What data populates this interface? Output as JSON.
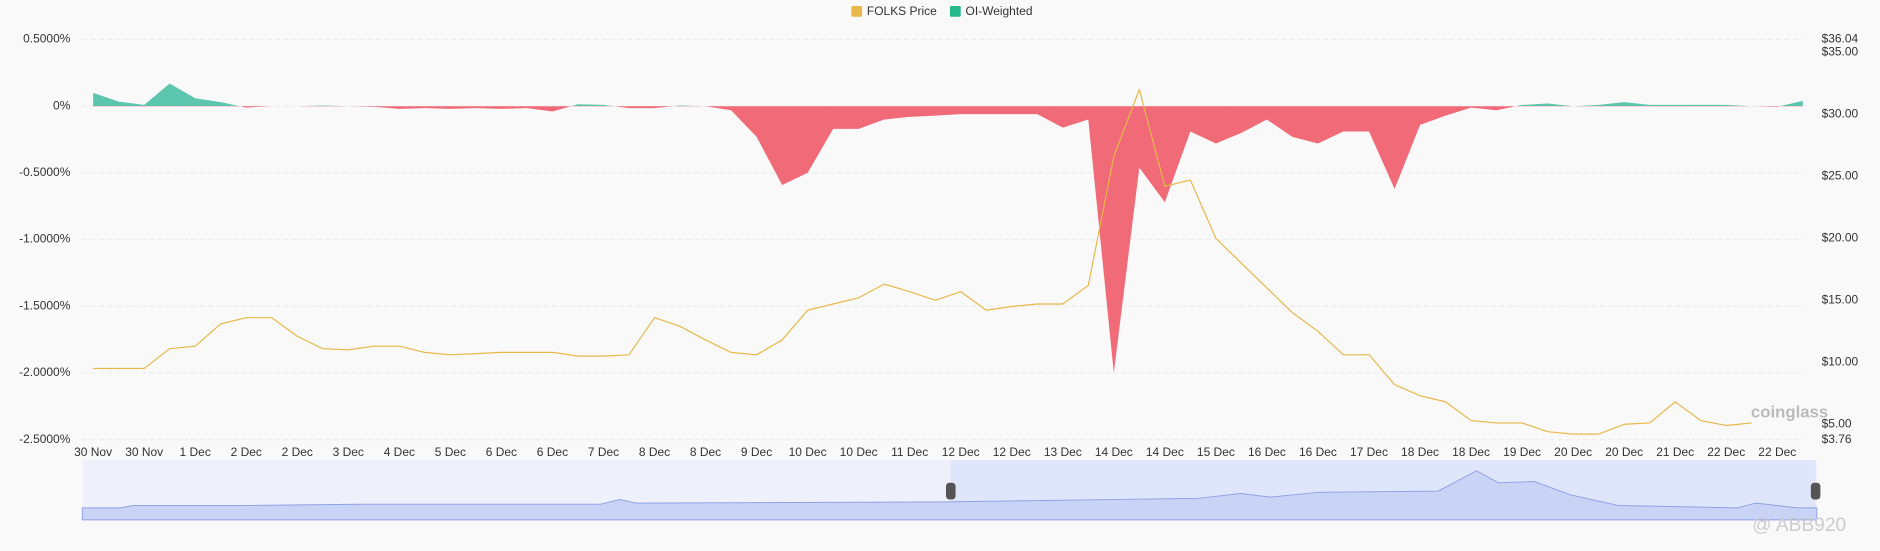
{
  "chart_data": {
    "type": "funding-price",
    "categories": [
      "30 Nov",
      null,
      "30 Nov",
      null,
      "1 Dec",
      null,
      "2 Dec",
      null,
      "2 Dec",
      null,
      "3 Dec",
      null,
      "4 Dec",
      null,
      "5 Dec",
      null,
      "6 Dec",
      null,
      "6 Dec",
      null,
      "7 Dec",
      null,
      "8 Dec",
      null,
      "8 Dec",
      null,
      "9 Dec",
      null,
      "10 Dec",
      null,
      "10 Dec",
      null,
      "11 Dec",
      null,
      "12 Dec",
      null,
      "12 Dec",
      null,
      "13 Dec",
      null,
      "14 Dec",
      null,
      "14 Dec",
      null,
      "15 Dec",
      null,
      "16 Dec",
      null,
      "16 Dec",
      null,
      "17 Dec",
      null,
      "18 Dec",
      null,
      "18 Dec",
      null,
      "19 Dec",
      null,
      "20 Dec",
      null,
      "20 Dec",
      null,
      "21 Dec",
      null,
      "22 Dec",
      null,
      "22 Dec",
      null
    ],
    "series": [
      {
        "name": "FOLKS Price",
        "color": "#e8b84a",
        "axis": "y2",
        "values": [
          9.5,
          9.5,
          9.5,
          11.1,
          11.3,
          13.1,
          13.6,
          13.6,
          12.1,
          11.1,
          11.0,
          11.3,
          11.3,
          10.8,
          10.6,
          10.7,
          10.8,
          10.8,
          10.8,
          10.5,
          10.5,
          10.6,
          13.6,
          12.9,
          11.8,
          10.8,
          10.6,
          11.8,
          14.2,
          14.7,
          15.2,
          16.3,
          15.7,
          15.0,
          15.7,
          14.2,
          14.5,
          14.7,
          14.7,
          16.2,
          26.6,
          32.0,
          24.2,
          24.7,
          20.0,
          18.0,
          16.0,
          14.0,
          12.5,
          10.6,
          10.6,
          8.2,
          7.3,
          6.8,
          5.3,
          5.1,
          5.1,
          4.4,
          4.2,
          4.2,
          5.0,
          5.1,
          6.8,
          5.3,
          4.9,
          5.1,
          null,
          null
        ]
      },
      {
        "name": "OI-Weighted",
        "color": "#26b98a",
        "negative_color": "#f06a78",
        "positive_fill": "#5cc5ae",
        "values": [
          0.1,
          0.035,
          0.01,
          0.17,
          0.06,
          0.03,
          -0.01,
          0,
          0,
          0.005,
          0,
          -0.005,
          -0.02,
          -0.015,
          -0.02,
          -0.015,
          -0.02,
          -0.015,
          -0.04,
          0.015,
          0.01,
          -0.015,
          -0.015,
          0.005,
          0,
          -0.03,
          -0.23,
          -0.59,
          -0.5,
          -0.17,
          -0.17,
          -0.1,
          -0.08,
          -0.07,
          -0.06,
          -0.06,
          -0.06,
          -0.06,
          -0.16,
          -0.1,
          -2.0,
          -0.46,
          -0.72,
          -0.19,
          -0.28,
          -0.2,
          -0.1,
          -0.23,
          -0.28,
          -0.19,
          -0.19,
          -0.62,
          -0.14,
          -0.07,
          -0.01,
          -0.03,
          0.01,
          0.02,
          0,
          0.01,
          0.03,
          0.01,
          0.01,
          0.01,
          0.01,
          0,
          -0.005,
          0.04
        ]
      }
    ],
    "ylim": [
      -2.5,
      0.5
    ],
    "yticks": [
      {
        "value": 0.5,
        "label": "0.5000%"
      },
      {
        "value": 0,
        "label": "0%"
      },
      {
        "value": -0.5,
        "label": "-0.5000%"
      },
      {
        "value": -1,
        "label": "-1.0000%"
      },
      {
        "value": -1.5,
        "label": "-1.5000%"
      },
      {
        "value": -2,
        "label": "-2.0000%"
      },
      {
        "value": -2.5,
        "label": "-2.5000%"
      }
    ],
    "y2lim": [
      3.76,
      36.04
    ],
    "y2ticks": [
      {
        "value": 36.04,
        "label": "$36.04"
      },
      {
        "value": 35,
        "label": "$35.00"
      },
      {
        "value": 30,
        "label": "$30.00"
      },
      {
        "value": 25,
        "label": "$25.00"
      },
      {
        "value": 20,
        "label": "$20.00"
      },
      {
        "value": 15,
        "label": "$15.00"
      },
      {
        "value": 10,
        "label": "$10.00"
      },
      {
        "value": 5,
        "label": "$5.00"
      },
      {
        "value": 3.76,
        "label": "$3.76"
      }
    ],
    "grid": true,
    "legend": "top",
    "watermark": "coinglass",
    "credit": "@ ABB920"
  }
}
